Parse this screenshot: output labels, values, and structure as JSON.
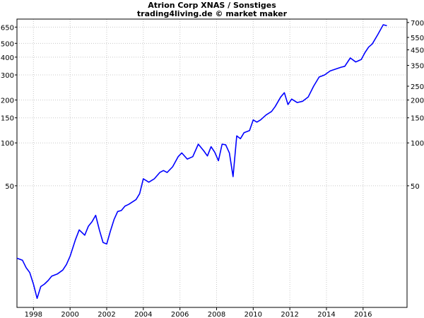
{
  "chart_data": {
    "type": "line",
    "title": "Atrion Corp XNAS / Sonstiges",
    "subtitle": "trading4living.de © market maker",
    "xlabel": "",
    "ylabel": "",
    "y_scale": "log",
    "xlim": [
      1997.1,
      2018.4
    ],
    "ylim": [
      7,
      740
    ],
    "grid": true,
    "line_color": "#0000ff",
    "x_ticks": [
      1998,
      2000,
      2002,
      2004,
      2006,
      2008,
      2010,
      2012,
      2014,
      2016
    ],
    "y_ticks_left": [
      50,
      100,
      150,
      200,
      300,
      400,
      500,
      650
    ],
    "y_ticks_right": [
      50,
      100,
      150,
      200,
      250,
      350,
      450,
      550,
      700
    ],
    "series": [
      {
        "x": [
          1997.1,
          1997.4,
          1997.6,
          1997.8,
          1998.0,
          1998.2,
          1998.4,
          1998.6,
          1998.8,
          1999.0,
          1999.3,
          1999.6,
          1999.8,
          2000.0,
          2000.3,
          2000.5,
          2000.8,
          2001.0,
          2001.2,
          2001.4,
          2001.6,
          2001.8,
          2002.0,
          2002.2,
          2002.4,
          2002.6,
          2002.8,
          2003.0,
          2003.2,
          2003.4,
          2003.6,
          2003.8,
          2004.0,
          2004.3,
          2004.6,
          2004.9,
          2005.1,
          2005.3,
          2005.6,
          2005.9,
          2006.1,
          2006.4,
          2006.7,
          2007.0,
          2007.3,
          2007.5,
          2007.7,
          2007.9,
          2008.1,
          2008.3,
          2008.5,
          2008.7,
          2008.9,
          2009.1,
          2009.3,
          2009.5,
          2009.8,
          2010.0,
          2010.2,
          2010.4,
          2010.7,
          2011.0,
          2011.2,
          2011.5,
          2011.7,
          2011.9,
          2012.1,
          2012.4,
          2012.7,
          2013.0,
          2013.3,
          2013.6,
          2013.9,
          2014.2,
          2014.5,
          2014.8,
          2015.0,
          2015.3,
          2015.6,
          2015.9,
          2016.1,
          2016.3,
          2016.5,
          2016.8,
          2017.0,
          2017.1,
          2017.3
        ],
        "values": [
          15.5,
          15.0,
          13.3,
          12.3,
          10.2,
          8.1,
          9.8,
          10.2,
          10.8,
          11.6,
          12.0,
          12.8,
          14.0,
          16.0,
          21.0,
          24.5,
          22.5,
          26.0,
          28.0,
          31.0,
          24.5,
          20.0,
          19.5,
          24.0,
          29.0,
          33.0,
          33.5,
          36.0,
          37.0,
          38.5,
          40.0,
          44.0,
          56.0,
          53.0,
          56.0,
          62.0,
          64.0,
          62.0,
          68.0,
          80.0,
          85.0,
          77.0,
          80.0,
          98.0,
          88.0,
          81.0,
          94.0,
          86.0,
          75.0,
          98.0,
          97.0,
          85.0,
          58.0,
          112.0,
          107.0,
          118.0,
          122.0,
          145.0,
          140.0,
          145.0,
          157.0,
          166.0,
          180.0,
          210.0,
          225.0,
          186.0,
          203.0,
          192.0,
          196.0,
          210.0,
          250.0,
          290.0,
          300.0,
          320.0,
          330.0,
          340.0,
          345.0,
          395.0,
          370.0,
          385.0,
          430.0,
          470.0,
          495.0,
          575.0,
          640.0,
          675.0,
          665.0
        ]
      }
    ]
  }
}
